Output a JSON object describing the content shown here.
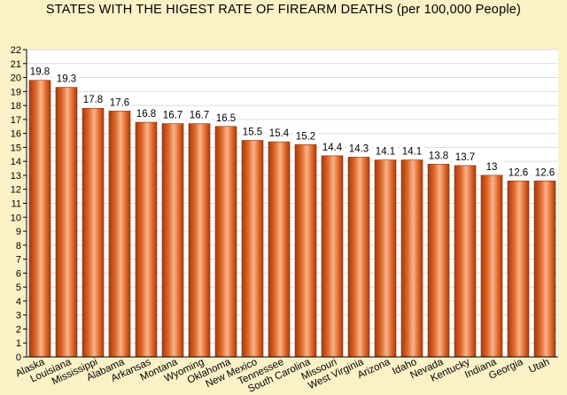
{
  "chart_data": {
    "type": "bar",
    "title": "STATES WITH THE HIGEST RATE OF FIREARM DEATHS (per 100,000 People)",
    "xlabel": "",
    "ylabel": "",
    "ylim": [
      0,
      22
    ],
    "yticks": [
      0,
      1,
      2,
      3,
      4,
      5,
      6,
      7,
      8,
      9,
      10,
      11,
      12,
      13,
      14,
      15,
      16,
      17,
      18,
      19,
      20,
      21,
      22
    ],
    "grid": true,
    "categories": [
      "Alaska",
      "Louisiana",
      "Mississippi",
      "Alabama",
      "Arkansas",
      "Montana",
      "Wyoming",
      "Oklahoma",
      "New Mexico",
      "Tennessee",
      "South Carolina",
      "Missouri",
      "West Virginia",
      "Arizona",
      "Idaho",
      "Nevada",
      "Kentucky",
      "Indiana",
      "Georgia",
      "Utah"
    ],
    "values": [
      19.8,
      19.3,
      17.8,
      17.6,
      16.8,
      16.7,
      16.7,
      16.5,
      15.5,
      15.4,
      15.2,
      14.4,
      14.3,
      14.1,
      14.1,
      13.8,
      13.7,
      13,
      12.6,
      12.6
    ],
    "value_labels": [
      "19.8",
      "19.3",
      "17.8",
      "17.6",
      "16.8",
      "16.7",
      "16.7",
      "16.5",
      "15.5",
      "15.4",
      "15.2",
      "14.4",
      "14.3",
      "14.1",
      "14.1",
      "13.8",
      "13.7",
      "13",
      "12.6",
      "12.6"
    ],
    "colors": {
      "background": "#fbf1c7",
      "plot_background": "#ffffff",
      "grid": "#dcdcdc",
      "bar_dark": "#a63c0c",
      "bar_mid": "#e0672a",
      "bar_light": "#f8b48a",
      "axis": "#000000"
    }
  }
}
